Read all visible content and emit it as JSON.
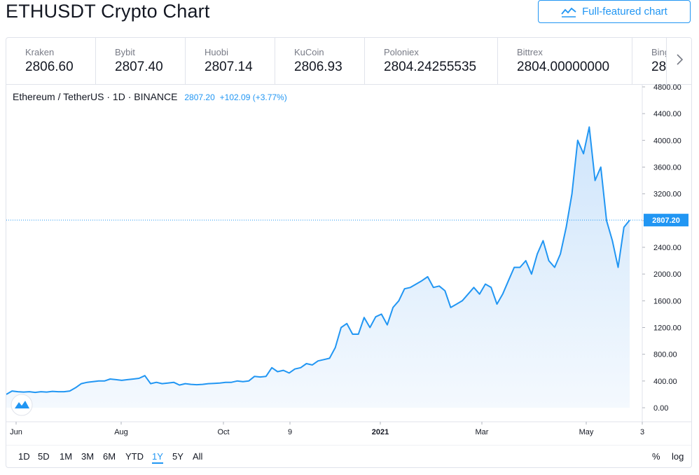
{
  "header": {
    "title": "ETHUSDT Crypto Chart",
    "full_chart_label": "Full-featured chart"
  },
  "exchanges": [
    {
      "name": "Kraken",
      "price": "2806.60"
    },
    {
      "name": "Bybit",
      "price": "2807.40"
    },
    {
      "name": "Huobi",
      "price": "2807.14"
    },
    {
      "name": "KuCoin",
      "price": "2806.93"
    },
    {
      "name": "Poloniex",
      "price": "2804.24255535"
    },
    {
      "name": "Bittrex",
      "price": "2804.00000000"
    },
    {
      "name": "Bing",
      "price": "28"
    }
  ],
  "legend": {
    "symbol": "Ethereum / TetherUS · 1D · BINANCE",
    "last": "2807.20",
    "change": "+102.09 (+3.77%)"
  },
  "ranges": [
    "1D",
    "5D",
    "1M",
    "3M",
    "6M",
    "YTD",
    "1Y",
    "5Y",
    "All"
  ],
  "active_range": "1Y",
  "scale_options": {
    "percent": "%",
    "log": "log"
  },
  "colors": {
    "accent": "#2196f3",
    "line": "#2196f3",
    "area_top": "#cfe5fb",
    "area_bottom": "#f4f9fe"
  },
  "chart_data": {
    "type": "area",
    "title": "ETHUSDT",
    "y_ticks": [
      "4800.00",
      "4400.00",
      "4000.00",
      "3600.00",
      "3200.00",
      "2800.00",
      "2400.00",
      "2000.00",
      "1600.00",
      "1200.00",
      "800.00",
      "400.00",
      "0.00"
    ],
    "ylim": [
      0,
      4800
    ],
    "x_ticks": [
      "Jun",
      "Aug",
      "Oct",
      "9",
      "2021",
      "Mar",
      "May",
      "3"
    ],
    "last_price_label": "2807.20",
    "last_price": 2807.2,
    "grid": false,
    "series": [
      {
        "values": [
          200,
          250,
          240,
          235,
          240,
          230,
          240,
          235,
          245,
          240,
          240,
          250,
          300,
          360,
          380,
          390,
          400,
          400,
          430,
          420,
          410,
          420,
          430,
          440,
          480,
          360,
          380,
          360,
          370,
          380,
          340,
          360,
          350,
          345,
          350,
          360,
          365,
          370,
          380,
          380,
          400,
          390,
          400,
          470,
          460,
          470,
          600,
          540,
          560,
          520,
          580,
          600,
          660,
          640,
          700,
          720,
          740,
          900,
          1200,
          1260,
          1100,
          1100,
          1350,
          1200,
          1360,
          1400,
          1240,
          1500,
          1600,
          1780,
          1800,
          1850,
          1900,
          1960,
          1800,
          1820,
          1750,
          1500,
          1550,
          1600,
          1700,
          1800,
          1700,
          1850,
          1800,
          1550,
          1700,
          1900,
          2100,
          2100,
          2200,
          2000,
          2300,
          2500,
          2200,
          2100,
          2300,
          2700,
          3200,
          4000,
          3800,
          4200,
          3400,
          3600,
          2800,
          2500,
          2100,
          2700,
          2807
        ]
      }
    ]
  }
}
